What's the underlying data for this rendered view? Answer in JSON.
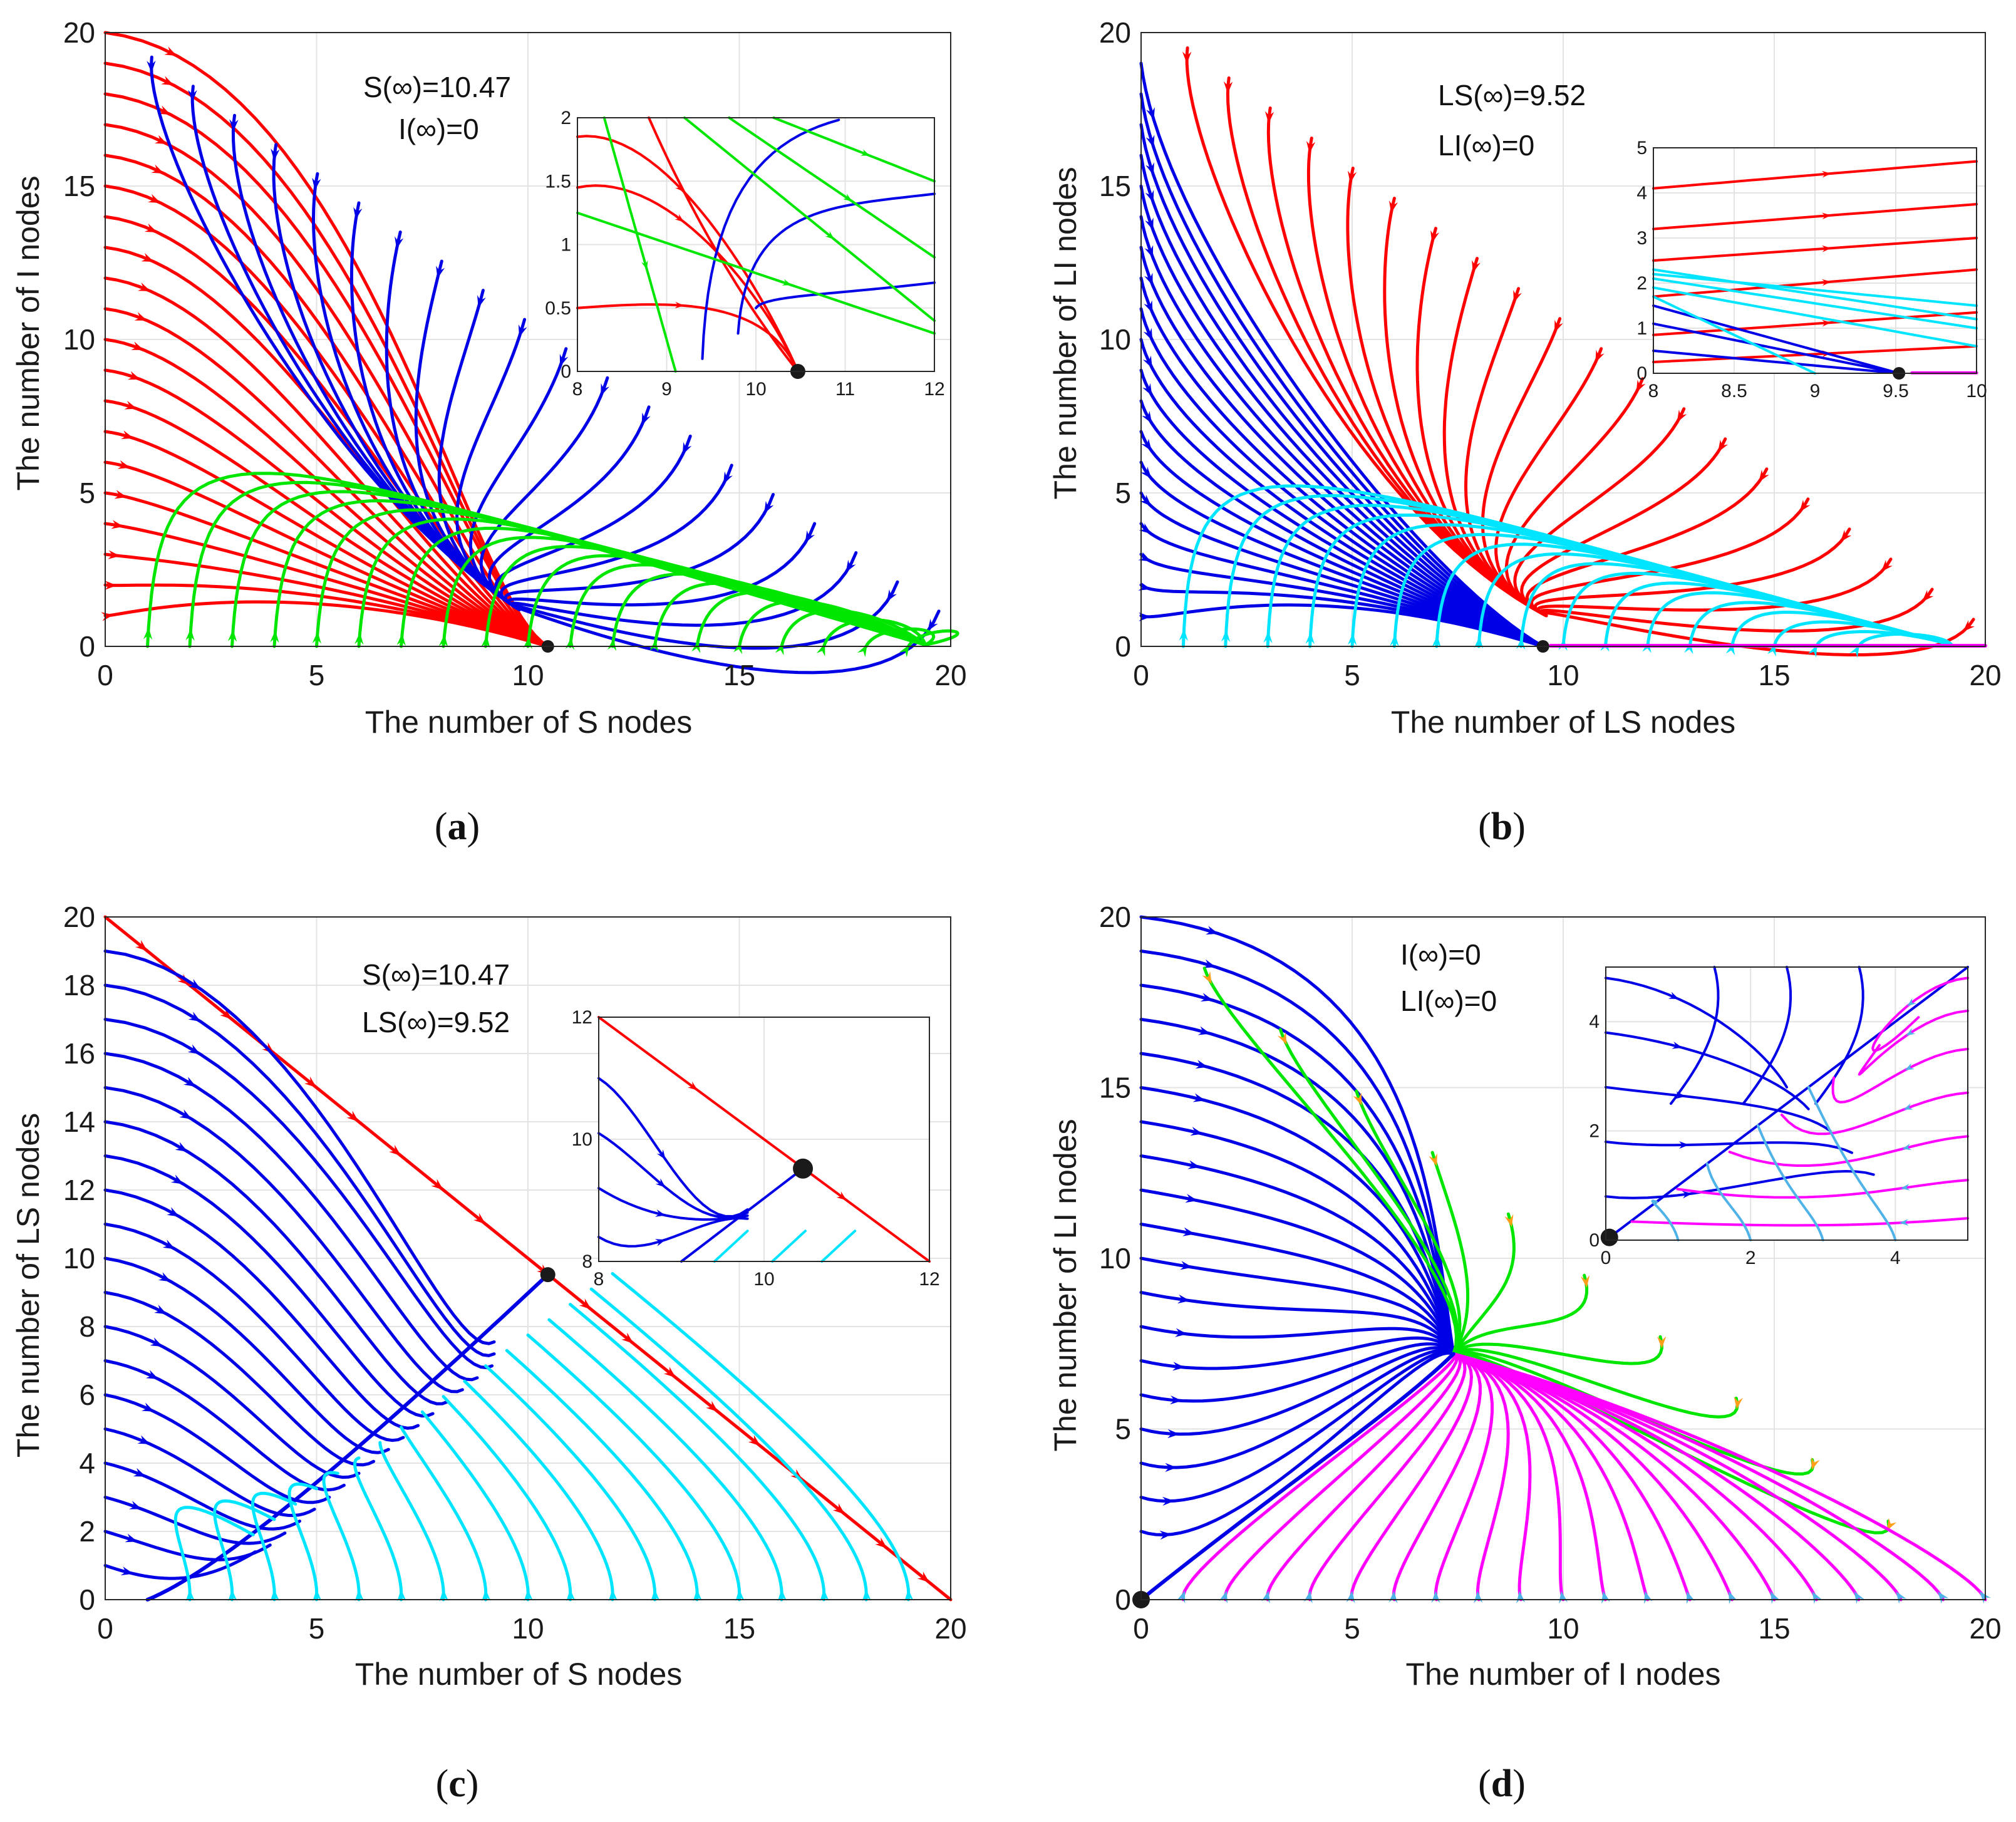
{
  "figure": {
    "captions": [
      {
        "open": "(",
        "letter": "a",
        "close": ")"
      },
      {
        "open": "(",
        "letter": "b",
        "close": ")"
      },
      {
        "open": "(",
        "letter": "c",
        "close": ")"
      },
      {
        "open": "(",
        "letter": "d",
        "close": ")"
      }
    ]
  },
  "chart_data": [
    {
      "id": "a",
      "type": "line",
      "title": "",
      "xlabel": "The number of S nodes",
      "ylabel": "The number of I nodes",
      "xlim": [
        0,
        20
      ],
      "ylim": [
        0,
        20
      ],
      "xticks": [
        0,
        5,
        10,
        15,
        20
      ],
      "yticks": [
        0,
        5,
        10,
        15,
        20
      ],
      "grid": true,
      "annotations": [
        "S(∞)=10.47",
        "I(∞)=0"
      ],
      "equilibrium": [
        10.47,
        0
      ],
      "colors": {
        "red": "#ff0000",
        "blue": "#0000e6",
        "green": "#00e600"
      },
      "inset": {
        "xlim": [
          8,
          12
        ],
        "ylim": [
          0,
          2
        ],
        "xticks": [
          8,
          9,
          10,
          11,
          12
        ],
        "yticks": [
          0,
          0.5,
          1,
          1.5,
          2
        ],
        "yticklabels": [
          "0",
          "0.5",
          "1",
          "1.5",
          "2"
        ]
      }
    },
    {
      "id": "b",
      "type": "line",
      "title": "",
      "xlabel": "The number of LS nodes",
      "ylabel": "The number of LI nodes",
      "xlim": [
        0,
        20
      ],
      "ylim": [
        0,
        20
      ],
      "xticks": [
        0,
        5,
        10,
        15,
        20
      ],
      "yticks": [
        0,
        5,
        10,
        15,
        20
      ],
      "grid": true,
      "annotations": [
        "LS(∞)=9.52",
        "LI(∞)=0"
      ],
      "equilibrium": [
        9.52,
        0
      ],
      "colors": {
        "red": "#ff0000",
        "blue": "#0000e6",
        "cyan": "#00e5ff",
        "magenta": "#ff00ff"
      },
      "inset": {
        "xlim": [
          8,
          10
        ],
        "ylim": [
          0,
          5
        ],
        "xticks": [
          8,
          8.5,
          9,
          9.5,
          10
        ],
        "xticklabels": [
          "8",
          "8.5",
          "9",
          "9.5",
          "10"
        ],
        "yticks": [
          0,
          1,
          2,
          3,
          4,
          5
        ]
      }
    },
    {
      "id": "c",
      "type": "line",
      "title": "",
      "xlabel": "The number of S nodes",
      "ylabel": "The number of LS nodes",
      "xlim": [
        0,
        20
      ],
      "ylim": [
        0,
        20
      ],
      "xticks": [
        0,
        5,
        10,
        15,
        20
      ],
      "yticks": [
        0,
        2,
        4,
        6,
        8,
        10,
        12,
        14,
        16,
        18,
        20
      ],
      "grid": true,
      "annotations": [
        "S(∞)=10.47",
        "LS(∞)=9.52"
      ],
      "equilibrium": [
        10.47,
        9.52
      ],
      "colors": {
        "red": "#ff0000",
        "blue": "#0000e6",
        "cyan": "#00e5ff"
      },
      "inset": {
        "xlim": [
          8,
          12
        ],
        "ylim": [
          8,
          12
        ],
        "xticks": [
          8,
          10,
          12
        ],
        "yticks": [
          8,
          10,
          12
        ]
      }
    },
    {
      "id": "d",
      "type": "line",
      "title": "",
      "xlabel": "The number of I nodes",
      "ylabel": "The number of LI nodes",
      "xlim": [
        0,
        20
      ],
      "ylim": [
        0,
        20
      ],
      "xticks": [
        0,
        5,
        10,
        15,
        20
      ],
      "yticks": [
        0,
        5,
        10,
        15,
        20
      ],
      "grid": true,
      "annotations": [
        "I(∞)=0",
        "LI(∞)=0"
      ],
      "equilibrium": [
        0,
        0
      ],
      "colors": {
        "blue": "#0000e6",
        "green": "#00e600",
        "magenta": "#ff00ff",
        "orange": "#ff9f1a",
        "lightblue": "#4fb3e8"
      },
      "inset": {
        "xlim": [
          0,
          5
        ],
        "ylim": [
          0,
          5
        ],
        "xticks": [
          0,
          2,
          4
        ],
        "yticks": [
          0,
          2,
          4
        ]
      }
    }
  ]
}
